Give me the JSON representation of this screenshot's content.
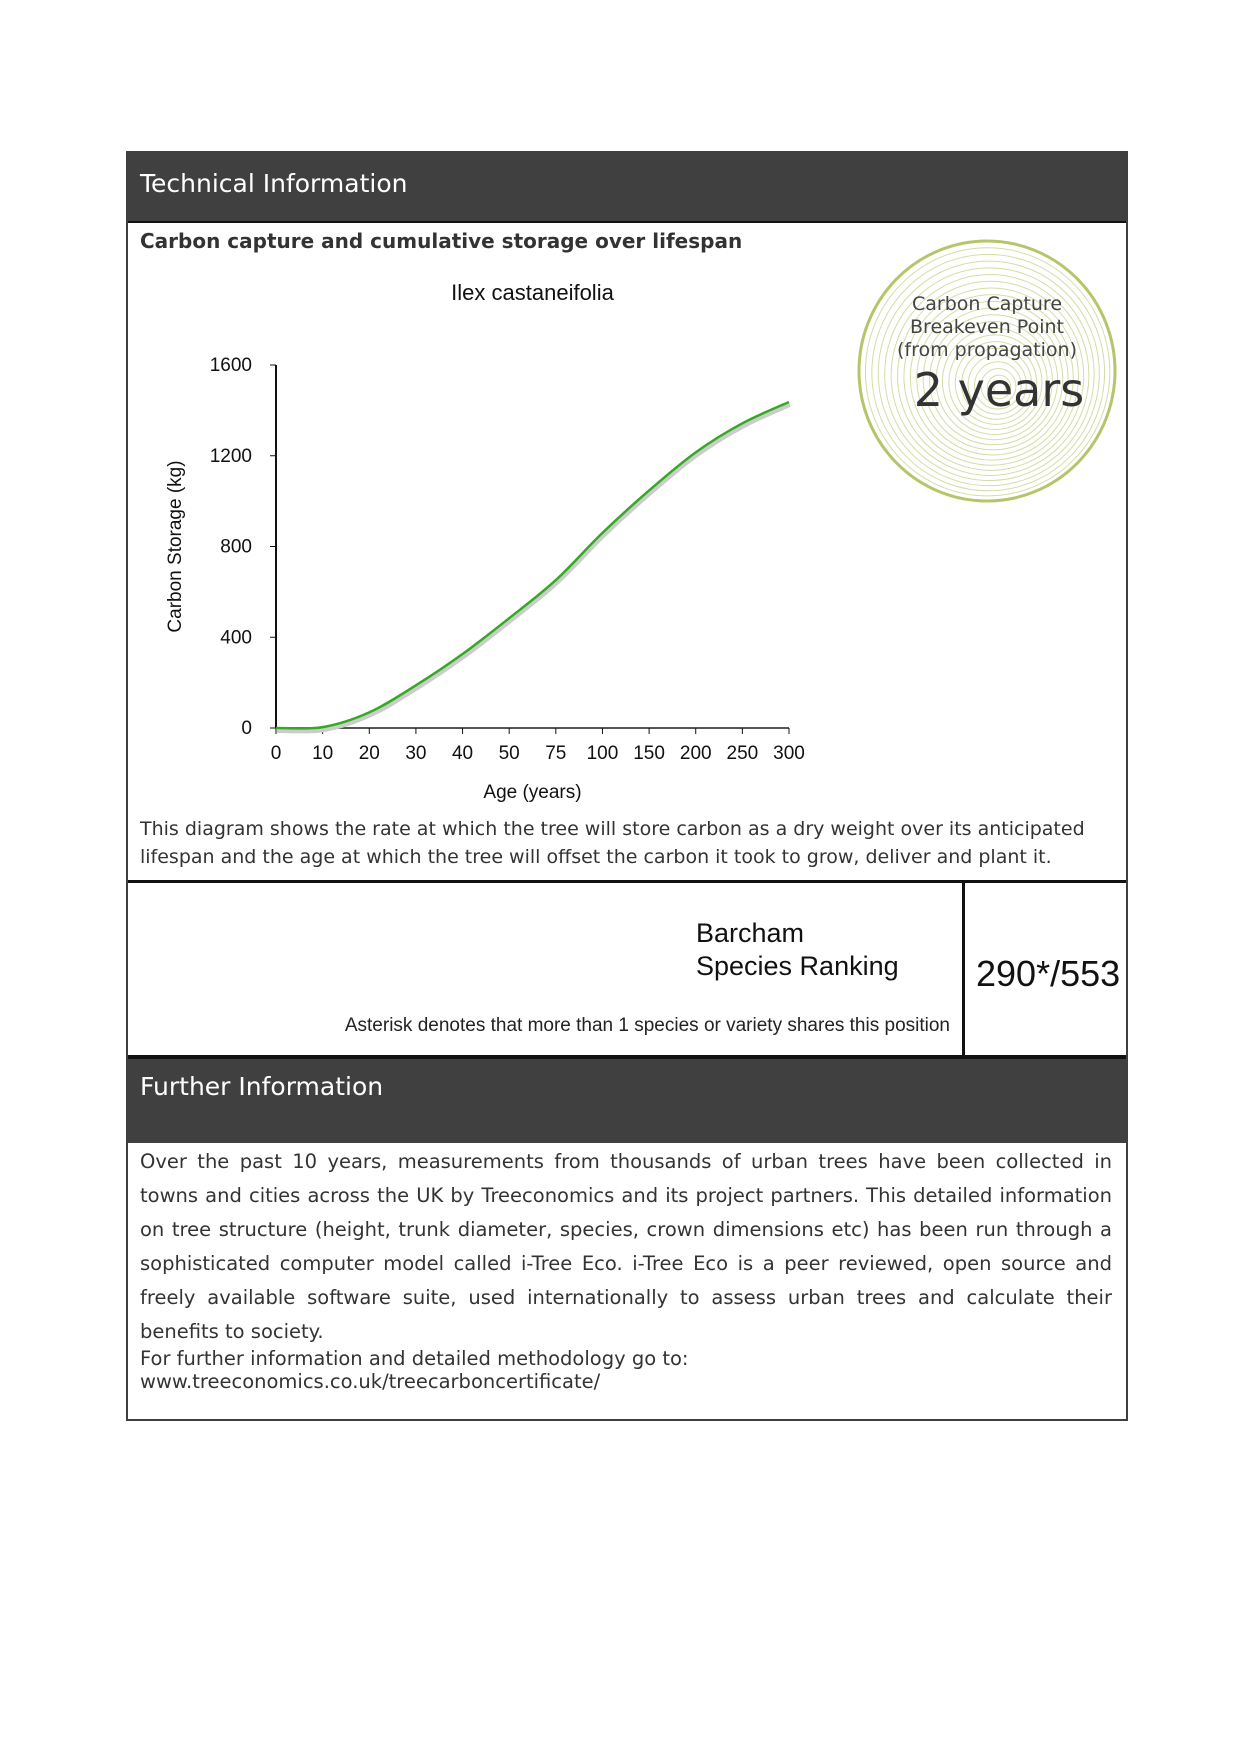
{
  "header": {
    "title": "Technical Information"
  },
  "chart_section": {
    "subtitle": "Carbon capture and cumulative storage over lifespan",
    "caption": "This diagram shows the rate at which the tree will store carbon as a dry weight over its anticipated lifespan and the age at which the tree will offset the carbon it took to grow, deliver and plant it."
  },
  "badge": {
    "line1": "Carbon Capture",
    "line2": "Breakeven Point",
    "line3": "(from propagation)",
    "value": "2 years",
    "color": "#b8c46a"
  },
  "chart_data": {
    "type": "line",
    "title": "Ilex castaneifolia",
    "xlabel": "Age (years)",
    "ylabel": "Carbon Storage (kg)",
    "categories": [
      "0",
      "10",
      "20",
      "30",
      "40",
      "50",
      "75",
      "100",
      "150",
      "200",
      "250",
      "300"
    ],
    "values": [
      0,
      4,
      69,
      188,
      326,
      484,
      652,
      860,
      1047,
      1215,
      1343,
      1437
    ],
    "yticks": [
      "0",
      "400",
      "800",
      "1200",
      "1600"
    ],
    "ylim": [
      0,
      1600
    ],
    "line_color": "#33aa22",
    "grid": false
  },
  "ranking": {
    "label1": "Barcham",
    "label2": "Species Ranking",
    "value": "290*/553",
    "note": "Asterisk denotes that more than 1 species or variety shares this position"
  },
  "further": {
    "title": "Further Information",
    "body": "Over the past 10 years, measurements from thousands of urban trees have been collected in towns and cities across the UK by Treeconomics and its project partners. This detailed information on tree structure (height, trunk diameter, species, crown dimensions etc) has been run through a sophisticated computer model called i-Tree Eco. i-Tree Eco is a peer reviewed, open source and freely available software suite, used internationally to assess urban trees and calculate their benefits to society.",
    "link": "For further information and detailed methodology go to: www.treeconomics.co.uk/treecarboncertificate/"
  }
}
